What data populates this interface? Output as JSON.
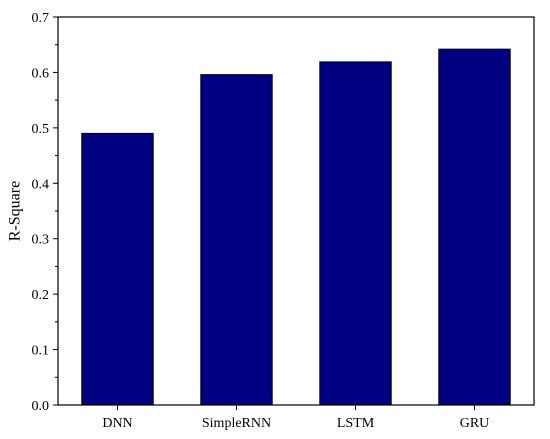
{
  "chart_data": {
    "type": "bar",
    "title": "",
    "xlabel": "",
    "ylabel": "R-Square",
    "categories": [
      "DNN",
      "SimpleRNN",
      "LSTM",
      "GRU"
    ],
    "values": [
      0.49,
      0.596,
      0.619,
      0.642
    ],
    "ylim": [
      0,
      0.7
    ],
    "yticks": [
      0.0,
      0.1,
      0.2,
      0.3,
      0.4,
      0.5,
      0.6,
      0.7
    ],
    "ytick_labels": [
      "0.0",
      "0.1",
      "0.2",
      "0.3",
      "0.4",
      "0.5",
      "0.6",
      "0.7"
    ],
    "bar_color": "#000080",
    "grid": false,
    "legend": "none"
  }
}
